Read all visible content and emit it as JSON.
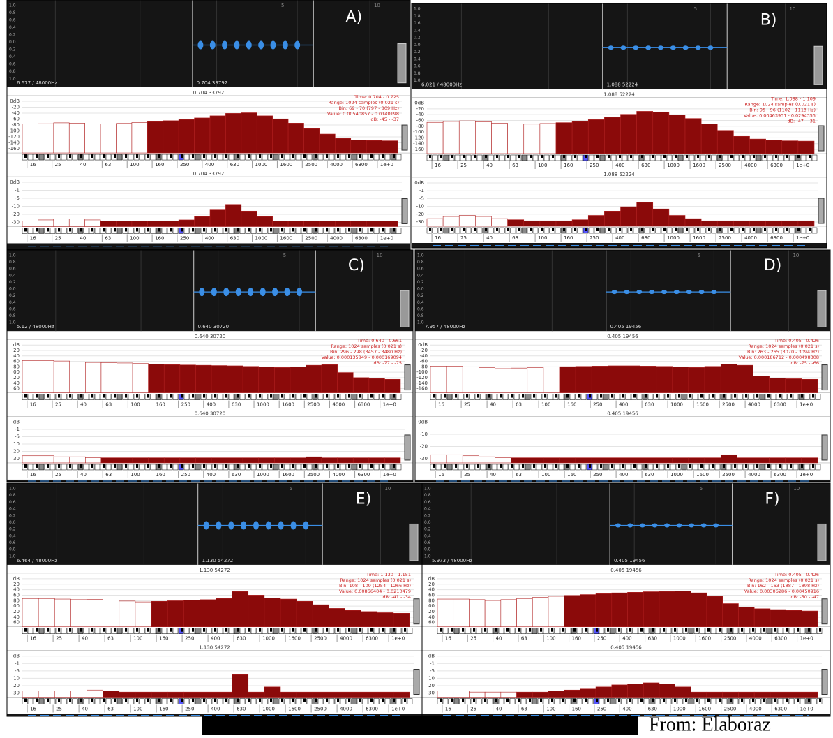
{
  "waveform_ticks": [
    "1.0",
    "0.8",
    "0.6",
    "0.4",
    "0.2",
    "0.0",
    "0.2",
    "0.4",
    "0.6",
    "0.8",
    "1.0"
  ],
  "timeline_marks": [
    "5",
    "10"
  ],
  "freq_labels": [
    "16",
    "25",
    "40",
    "63",
    "100",
    "160",
    "250",
    "400",
    "630",
    "1000",
    "1600",
    "2500",
    "4000",
    "6300",
    "1e+0"
  ],
  "spectrum_ylim": [
    -170,
    0
  ],
  "spectrum2_ylim": [
    -40,
    0
  ],
  "footer": {
    "text": "From: Elaboraz"
  },
  "panels": [
    {
      "label": "A)",
      "wave_info": "6.677 / 48000Hz",
      "cursor": "0.704  33792",
      "info": [
        "Time: 0.704 - 0.725",
        "Range: 1024 samples (0.021 s)",
        "Bin: 69 - 70 (797 - 809 Hz)",
        "Value: 0.00540857 - 0.0140198",
        "dB: -45 - -37"
      ],
      "spec_yticks": [
        "0dB",
        "-20",
        "-40",
        "-60",
        "-80",
        "-100",
        "-120",
        "-140",
        "-160"
      ],
      "spec2_yticks": [
        "0dB",
        "-1",
        "-5",
        "-10",
        "-20",
        "-30"
      ],
      "levels": [
        -75,
        -74,
        -71,
        -72,
        -75,
        -75,
        -73,
        -70,
        -67,
        -64,
        -60,
        -55,
        -48,
        -40,
        -38,
        -48,
        -58,
        -72,
        -90,
        -108,
        -122,
        -127,
        -129,
        -130
      ],
      "levels2": [
        -35,
        -34,
        -33,
        -33,
        -34,
        -35,
        -35,
        -35,
        -35,
        -35,
        -34,
        -31,
        -25,
        -20,
        -26,
        -31,
        -35,
        -35,
        -35,
        -35,
        -35,
        -35,
        -35,
        -35
      ]
    },
    {
      "label": "B)",
      "wave_info": "6.021 / 48000Hz",
      "cursor": "1.088  52224",
      "info": [
        "Time: 1.088 - 1.109",
        "Range: 1024 samples (0.021 s)",
        "Bin: 95 - 96 (1102 - 1113 Hz)",
        "Value: 0.00463931 - 0.0294355",
        "dB: -47 - -31"
      ],
      "spec_yticks": [
        "0dB",
        "-20",
        "-40",
        "-60",
        "-80",
        "-100",
        "-120",
        "-140",
        "-160"
      ],
      "spec2_yticks": [
        "0dB",
        "-1",
        "-5",
        "-10",
        "-20",
        "-30"
      ],
      "levels": [
        -65,
        -62,
        -60,
        -63,
        -68,
        -70,
        -71,
        -69,
        -66,
        -62,
        -56,
        -48,
        -38,
        -28,
        -30,
        -40,
        -52,
        -70,
        -92,
        -112,
        -121,
        -125,
        -127,
        -128
      ],
      "levels2": [
        -33,
        -31,
        -30,
        -31,
        -33,
        -34,
        -35,
        -35,
        -35,
        -34,
        -30,
        -26,
        -22,
        -18,
        -24,
        -30,
        -33,
        -35,
        -35,
        -35,
        -35,
        -35,
        -35,
        -35
      ]
    },
    {
      "label": "C)",
      "wave_info": "5.12 / 48000Hz",
      "cursor": "0.640  30720",
      "info": [
        "Time: 0.640 - 0.661",
        "Range: 1024 samples (0.021 s)",
        "Bin: 296 - 298 (3457 - 3480 Hz)",
        "Value: 0.000135849 - 0.000169094",
        "dB: -77 - -75"
      ],
      "spec_yticks": [
        "dB",
        "20",
        "40",
        "60",
        "80",
        "00",
        "20",
        "40",
        "60"
      ],
      "spec2_yticks": [
        "dB",
        "-1",
        "-5",
        "10",
        "20",
        "30"
      ],
      "levels": [
        -55,
        -55,
        -57,
        -60,
        -62,
        -63,
        -64,
        -66,
        -68,
        -70,
        -71,
        -72,
        -73,
        -74,
        -76,
        -78,
        -80,
        -78,
        -72,
        -70,
        -98,
        -116,
        -119,
        -122
      ],
      "levels2": [
        -33,
        -33,
        -34,
        -34,
        -35,
        -35,
        -35,
        -35,
        -35,
        -35,
        -35,
        -35,
        -35,
        -35,
        -35,
        -35,
        -35,
        -35,
        -34,
        -35,
        -35,
        -35,
        -35,
        -35
      ]
    },
    {
      "label": "D)",
      "wave_info": "7.957 / 48000Hz",
      "cursor": "0.405  19456",
      "info": [
        "Time: 0.405 - 0.426",
        "Range: 1024 samples (0.021 s)",
        "Bin: 263 - 265 (3070 - 3094 Hz)",
        "Value: 0.000186712 - 0.000498308",
        "dB: -75 - -66"
      ],
      "spec_yticks": [
        "0dB",
        "-20",
        "-40",
        "-60",
        "-80",
        "-100",
        "-120",
        "-140",
        "-160"
      ],
      "spec2_yticks": [
        "0dB",
        "-10",
        "-20",
        "-30"
      ],
      "levels": [
        -75,
        -75,
        -78,
        -80,
        -84,
        -82,
        -80,
        -78,
        -77,
        -76,
        -75,
        -74,
        -74,
        -75,
        -76,
        -78,
        -80,
        -76,
        -68,
        -72,
        -110,
        -118,
        -120,
        -122
      ],
      "levels2": [
        -32,
        -32,
        -33,
        -34,
        -35,
        -35,
        -35,
        -35,
        -35,
        -35,
        -35,
        -35,
        -35,
        -35,
        -35,
        -35,
        -35,
        -35,
        -32,
        -35,
        -35,
        -35,
        -35,
        -35
      ]
    },
    {
      "label": "E)",
      "wave_info": "6.464 / 48000Hz",
      "cursor": "1.130  54272",
      "info": [
        "Time: 1.130 - 1.151",
        "Range: 1024 samples (0.021 s)",
        "Bin: 108 - 109 (1254 - 1266 Hz)",
        "Value: 0.00866404 - 0.0210479",
        "dB: -41 - -34"
      ],
      "spec_yticks": [
        "dB",
        "20",
        "40",
        "60",
        "80",
        "00",
        "20",
        "40",
        "60"
      ],
      "spec2_yticks": [
        "dB",
        "-1",
        "-5",
        "10",
        "20",
        "30"
      ],
      "levels": [
        -70,
        -70,
        -72,
        -74,
        -73,
        -76,
        -79,
        -82,
        -80,
        -78,
        -76,
        -74,
        -70,
        -45,
        -58,
        -68,
        -72,
        -80,
        -92,
        -105,
        -112,
        -116,
        -120,
        -122
      ],
      "levels2": [
        -34,
        -34,
        -34,
        -34,
        -33,
        -34,
        -35,
        -35,
        -35,
        -35,
        -35,
        -35,
        -35,
        -18,
        -35,
        -30,
        -35,
        -35,
        -35,
        -35,
        -35,
        -35,
        -35,
        -35
      ]
    },
    {
      "label": "F)",
      "wave_info": "5.973 / 48000Hz",
      "cursor": "0.405  19456",
      "info": [
        "Time: 0.405 - 0.426",
        "Range: 1024 samples (0.021 s)",
        "Bin: 162 - 163 (1887 - 1898 Hz)",
        "Value: 0.00306286 - 0.00450916",
        "dB: -50 - -47"
      ],
      "spec_yticks": [
        "dB",
        "20",
        "40",
        "60",
        "80",
        "00",
        "20",
        "40",
        "60"
      ],
      "spec2_yticks": [
        "dB",
        "-1",
        "-5",
        "10",
        "20",
        "30"
      ],
      "levels": [
        -72,
        -72,
        -74,
        -77,
        -74,
        -70,
        -66,
        -62,
        -59,
        -56,
        -53,
        -50,
        -48,
        -46,
        -45,
        -44,
        -50,
        -62,
        -88,
        -100,
        -106,
        -109,
        -112,
        -114
      ],
      "levels2": [
        -34,
        -34,
        -35,
        -35,
        -35,
        -35,
        -35,
        -34,
        -33,
        -32,
        -30,
        -28,
        -27,
        -26,
        -27,
        -30,
        -35,
        -35,
        -35,
        -35,
        -35,
        -35,
        -35,
        -35
      ]
    }
  ]
}
